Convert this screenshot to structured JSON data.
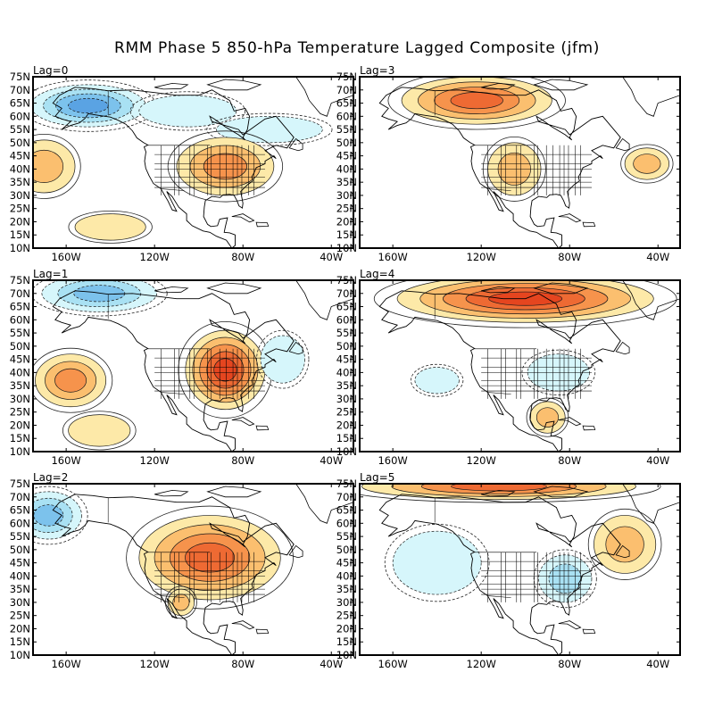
{
  "title": "RMM Phase 5 850-hPa Temperature Lagged Composite (jfm)",
  "lat_ticks": [
    "75N",
    "70N",
    "65N",
    "60N",
    "55N",
    "50N",
    "45N",
    "40N",
    "35N",
    "30N",
    "25N",
    "20N",
    "15N",
    "10N"
  ],
  "lon_ticks": [
    "160W",
    "120W",
    "80W",
    "40W"
  ],
  "colors": {
    "warm": [
      "#fde9a8",
      "#fbbf6f",
      "#f6934c",
      "#ee6a33",
      "#e5451f"
    ],
    "cold": [
      "#d6f6fb",
      "#a9e1f3",
      "#7cc2ec",
      "#5aa3e3",
      "#3f83d5"
    ]
  },
  "panels": [
    {
      "label": "Lag=0",
      "anomalies": [
        {
          "lon": -150,
          "lat": 64,
          "rx": 26,
          "ry": 8,
          "sign": -1,
          "level": 4
        },
        {
          "lon": -105,
          "lat": 62,
          "rx": 22,
          "ry": 6,
          "sign": -1,
          "level": 1
        },
        {
          "lon": -68,
          "lat": 55,
          "rx": 24,
          "ry": 5,
          "sign": -1,
          "level": 1
        },
        {
          "lon": -88,
          "lat": 41,
          "rx": 22,
          "ry": 11,
          "sign": 1,
          "level": 3
        },
        {
          "lon": -170,
          "lat": 41,
          "rx": 14,
          "ry": 10,
          "sign": 1,
          "level": 2
        },
        {
          "lon": -140,
          "lat": 18,
          "rx": 16,
          "ry": 5,
          "sign": 1,
          "level": 1
        }
      ]
    },
    {
      "label": "Lag=1",
      "anomalies": [
        {
          "lon": -145,
          "lat": 70,
          "rx": 26,
          "ry": 7,
          "sign": -1,
          "level": 3
        },
        {
          "lon": -88,
          "lat": 41,
          "rx": 18,
          "ry": 15,
          "sign": 1,
          "level": 5
        },
        {
          "lon": -158,
          "lat": 37,
          "rx": 16,
          "ry": 10,
          "sign": 1,
          "level": 3
        },
        {
          "lon": -62,
          "lat": 45,
          "rx": 10,
          "ry": 9,
          "sign": -1,
          "level": 1
        },
        {
          "lon": -145,
          "lat": 18,
          "rx": 14,
          "ry": 6,
          "sign": 1,
          "level": 1
        }
      ]
    },
    {
      "label": "Lag=2",
      "anomalies": [
        {
          "lon": -95,
          "lat": 47,
          "rx": 32,
          "ry": 16,
          "sign": 1,
          "level": 4
        },
        {
          "lon": -108,
          "lat": 30,
          "rx": 6,
          "ry": 5,
          "sign": 1,
          "level": 2
        },
        {
          "lon": -168,
          "lat": 63,
          "rx": 15,
          "ry": 9,
          "sign": -1,
          "level": 3
        }
      ]
    },
    {
      "label": "Lag=3",
      "anomalies": [
        {
          "lon": -122,
          "lat": 66,
          "rx": 34,
          "ry": 9,
          "sign": 1,
          "level": 4
        },
        {
          "lon": -105,
          "lat": 40,
          "rx": 12,
          "ry": 10,
          "sign": 1,
          "level": 2
        },
        {
          "lon": -45,
          "lat": 42,
          "rx": 10,
          "ry": 6,
          "sign": 1,
          "level": 2
        }
      ]
    },
    {
      "label": "Lag=4",
      "anomalies": [
        {
          "lon": -100,
          "lat": 68,
          "rx": 58,
          "ry": 9,
          "sign": 1,
          "level": 5
        },
        {
          "lon": -85,
          "lat": 40,
          "rx": 14,
          "ry": 7,
          "sign": -1,
          "level": 1
        },
        {
          "lon": -90,
          "lat": 23,
          "rx": 8,
          "ry": 6,
          "sign": 1,
          "level": 2
        },
        {
          "lon": -140,
          "lat": 37,
          "rx": 10,
          "ry": 5,
          "sign": -1,
          "level": 1
        }
      ]
    },
    {
      "label": "Lag=5",
      "anomalies": [
        {
          "lon": -112,
          "lat": 74,
          "rx": 62,
          "ry": 5,
          "sign": 1,
          "level": 4
        },
        {
          "lon": -55,
          "lat": 52,
          "rx": 14,
          "ry": 11,
          "sign": 1,
          "level": 2
        },
        {
          "lon": -82,
          "lat": 39,
          "rx": 12,
          "ry": 9,
          "sign": -1,
          "level": 2
        },
        {
          "lon": -140,
          "lat": 45,
          "rx": 20,
          "ry": 12,
          "sign": -1,
          "level": 1
        }
      ]
    }
  ]
}
